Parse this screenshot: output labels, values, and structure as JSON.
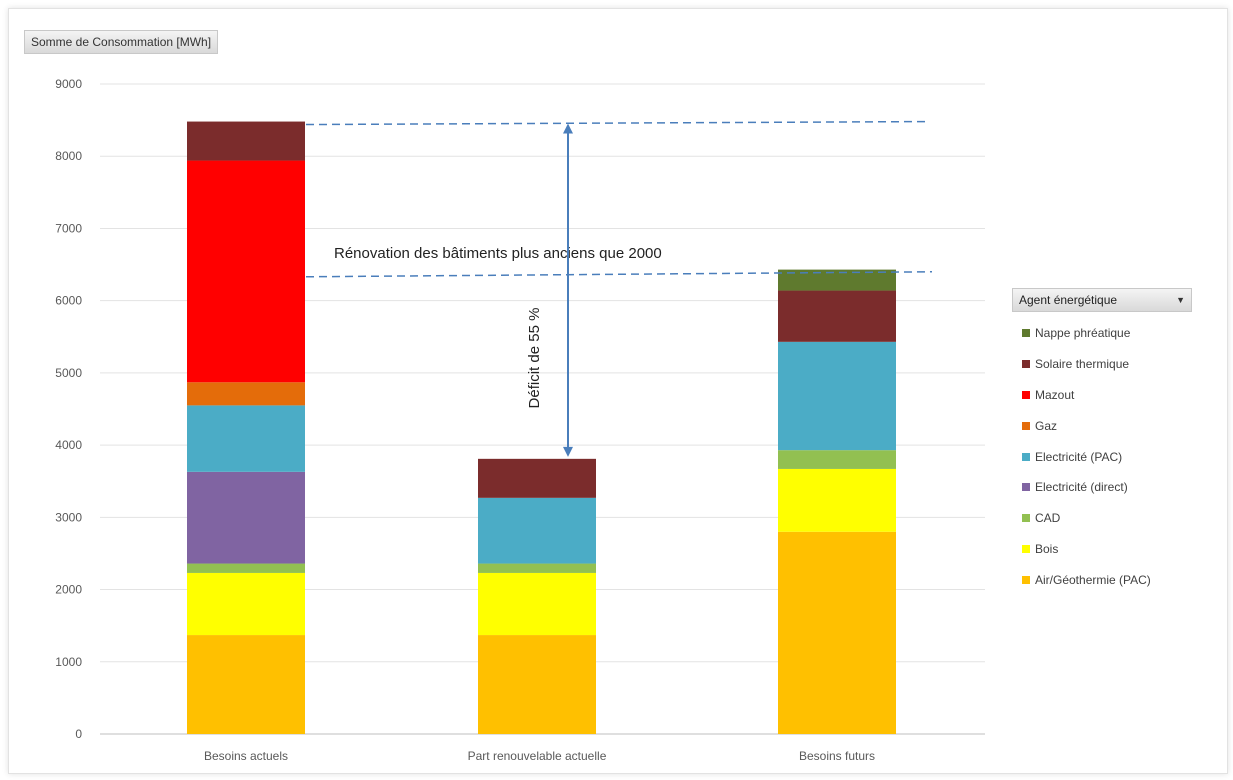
{
  "chart_data": {
    "type": "bar",
    "stacked": true,
    "value_field": "Somme de Consommation [MWh]",
    "categories": [
      "Besoins actuels",
      "Part renouvelable actuelle",
      "Besoins futurs"
    ],
    "ylim": [
      0,
      9000
    ],
    "yticks": [
      0,
      1000,
      2000,
      3000,
      4000,
      5000,
      6000,
      7000,
      8000,
      9000
    ],
    "grid": true,
    "legend_title": "Agent énergétique",
    "legend_position": "right",
    "series": [
      {
        "name": "Air/Géothermie (PAC)",
        "color": "#ffc000",
        "values": [
          1370,
          1370,
          2800
        ]
      },
      {
        "name": "Bois",
        "color": "#ffff00",
        "values": [
          860,
          860,
          870
        ]
      },
      {
        "name": "CAD",
        "color": "#92c051",
        "values": [
          130,
          130,
          260
        ]
      },
      {
        "name": "Electricité (direct)",
        "color": "#8064a2",
        "values": [
          1270,
          0,
          0
        ]
      },
      {
        "name": "Electricité (PAC)",
        "color": "#4bacc6",
        "values": [
          920,
          910,
          1500
        ]
      },
      {
        "name": "Gaz",
        "color": "#e46c0a",
        "values": [
          320,
          0,
          0
        ]
      },
      {
        "name": "Mazout",
        "color": "#ff0000",
        "values": [
          3070,
          0,
          0
        ]
      },
      {
        "name": "Solaire thermique",
        "color": "#7b2c2c",
        "values": [
          540,
          540,
          710
        ]
      },
      {
        "name": "Nappe phréatique",
        "color": "#5f7a2e",
        "values": [
          0,
          0,
          290
        ]
      }
    ],
    "annotations": [
      {
        "text": "Rénovation des bâtiments plus anciens que 2000",
        "y": 6400
      },
      {
        "text": "Déficit de 55 %",
        "from_y": 3810,
        "to_y": 8480
      }
    ],
    "reference_lines": [
      8480,
      6400
    ]
  }
}
